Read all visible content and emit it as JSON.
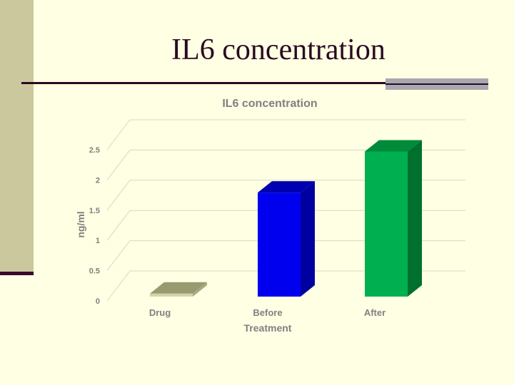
{
  "slide": {
    "title": "IL6 concentration",
    "colors": {
      "background": "#FFFFE3",
      "band": "#CCC89E",
      "title": "#2A0A22"
    }
  },
  "chart_data": {
    "type": "bar",
    "title": "IL6  concentration",
    "xlabel": "Treatment",
    "ylabel": "ng/ml",
    "categories": [
      "Drug",
      "Before",
      "After"
    ],
    "values": [
      0.05,
      1.72,
      2.4
    ],
    "ylim": [
      0,
      2.5
    ],
    "yticks": [
      0,
      0.5,
      1,
      1.5,
      2,
      2.5
    ],
    "yticklabels": [
      "0",
      "0.5",
      "1",
      "1.5",
      "2",
      "2.5"
    ],
    "bar_colors": [
      "#D4D4A8",
      "#0000EE",
      "#00B050"
    ],
    "bar_top_colors": [
      "#9A9A70",
      "#0000B0",
      "#008A3A"
    ],
    "bar_side_colors": [
      "#A8A880",
      "#0000A0",
      "#00702E"
    ],
    "grid": true,
    "legend": "none"
  }
}
